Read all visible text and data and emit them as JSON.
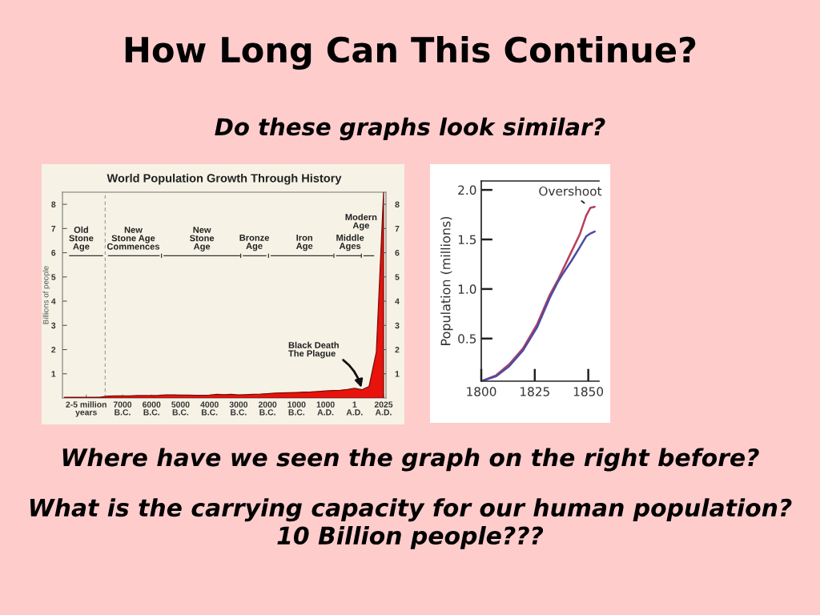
{
  "chart_data": [
    {
      "type": "other",
      "title": "How Long Can This Continue?",
      "subtitle": "Do these graphs look similar?",
      "annotations": [
        "Where have we seen the graph on the right before?",
        "What is the carrying capacity for our human population?\n10 Billion people???"
      ]
    },
    {
      "type": "area",
      "title": "World Population Growth Through History",
      "ylabel": "Billions of people",
      "categories": [
        null,
        null,
        null,
        "2-5 million\nyears",
        null,
        null,
        null,
        null,
        "7000\nB.C.",
        null,
        null,
        null,
        "6000\nB.C.",
        null,
        null,
        null,
        "5000\nB.C.",
        null,
        null,
        null,
        "4000\nB.C.",
        null,
        null,
        null,
        "3000\nB.C.",
        null,
        null,
        null,
        "2000\nB.C.",
        null,
        null,
        null,
        "1000\nB.C.",
        null,
        null,
        null,
        "1000\nA.D.",
        null,
        null,
        null,
        "1\nA.D.",
        null,
        null,
        null,
        "2025\nA.D."
      ],
      "values": [
        0.03,
        0.03,
        0.03,
        0.03,
        0.03,
        0.04,
        0.08,
        0.09,
        0.09,
        0.09,
        0.1,
        0.1,
        0.1,
        0.11,
        0.13,
        0.13,
        0.12,
        0.12,
        0.11,
        0.11,
        0.12,
        0.15,
        0.14,
        0.15,
        0.13,
        0.14,
        0.15,
        0.16,
        0.18,
        0.2,
        0.21,
        0.22,
        0.23,
        0.24,
        0.25,
        0.27,
        0.29,
        0.31,
        0.32,
        0.35,
        0.4,
        0.34,
        0.48,
        1.9,
        8.5
      ],
      "color": "#e8130d",
      "ylim": [
        0,
        8.5
      ],
      "yticks": [
        1,
        2,
        3,
        4,
        5,
        6,
        7,
        8
      ],
      "y2lim": [
        0,
        8.5
      ],
      "y2ticks": [
        1,
        2,
        3,
        4,
        5,
        6,
        7,
        8
      ],
      "annotations": [
        "Old\nStone\nAge",
        "New\nStone Age\nCommences",
        "New\nStone\nAge",
        "Bronze\nAge",
        "Iron\nAge",
        "Middle\nAges",
        "Modern\nAge",
        "Black Death\nThe Plague"
      ]
    },
    {
      "type": "line",
      "ylabel": "Population (millions)",
      "x": [
        1800,
        1807,
        1813,
        1819.5,
        1826,
        1832,
        1836,
        1838,
        1842,
        1846,
        1849,
        1851,
        1853
      ],
      "series": [
        {
          "color": "#b5405e",
          "values": [
            0.07,
            0.13,
            0.24,
            0.4,
            0.64,
            0.94,
            1.1,
            1.19,
            1.37,
            1.55,
            1.74,
            1.82,
            1.83
          ]
        },
        {
          "color": "#4a4ca4",
          "values": [
            0.07,
            0.12,
            0.22,
            0.38,
            0.61,
            0.91,
            1.08,
            1.15,
            1.28,
            1.42,
            1.53,
            1.56,
            1.58
          ]
        }
      ],
      "xlim": [
        1800,
        1855
      ],
      "xticks": [
        1800,
        1825,
        1850
      ],
      "ylim": [
        0.07,
        2.09
      ],
      "yticks": [
        0.5,
        {
          "value": 1,
          "label": "1.0"
        },
        1.5,
        {
          "value": 2,
          "label": "2.0"
        }
      ],
      "annotations": [
        {
          "text": "Overshoot",
          "x": 1851,
          "y": 1.82
        }
      ]
    }
  ]
}
